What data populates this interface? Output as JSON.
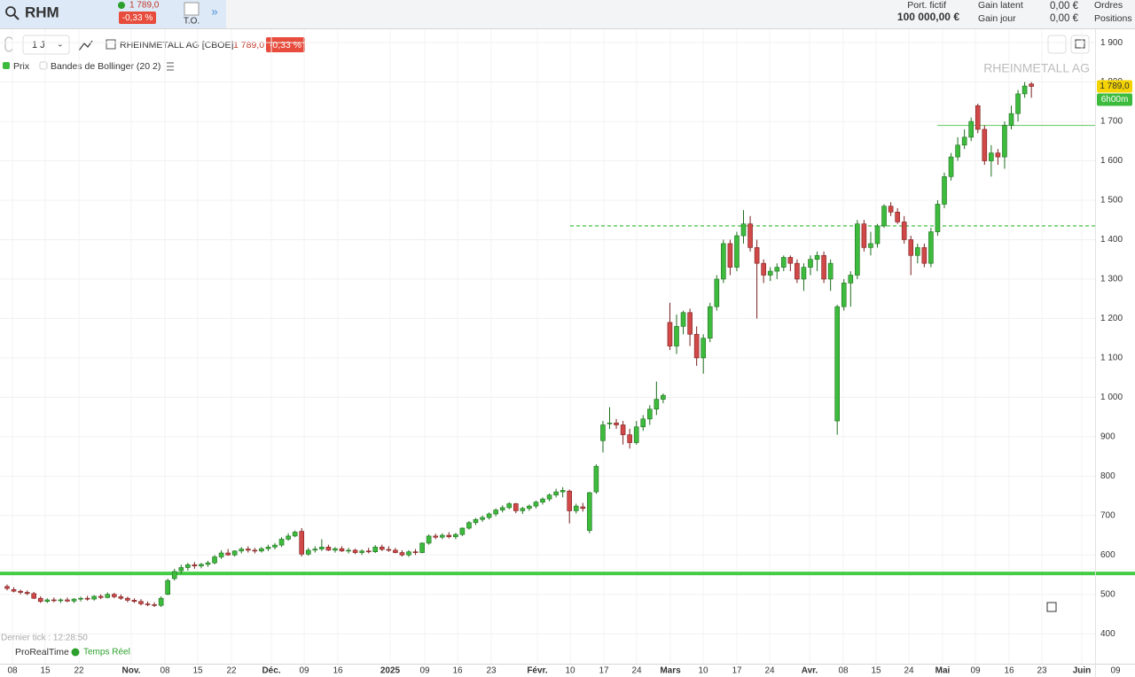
{
  "top_bar": {
    "symbol": "RHM",
    "price": "1 789,0",
    "change": "-0,33 %",
    "to": "T.O.",
    "portfolio_label": "Port. fictif",
    "portfolio_value": "100 000,00 €",
    "gain_latent_label": "Gain latent",
    "gain_latent": "0,00 €",
    "gain_jour_label": "Gain jour",
    "gain_jour": "0,00 €",
    "orders": "Ordres",
    "positions": "Positions"
  },
  "toolbar": {
    "interval": "1 J",
    "instrument": "RHEINMETALL AG [CBOE]",
    "price": "1 789,0",
    "change": "-0,33 %"
  },
  "legend": {
    "price": "Prix",
    "indicator": "Bandes de Bollinger (20 2)"
  },
  "footer": {
    "last_tick": "Dernier tick : 12:28:50",
    "brand": "ProRealTime",
    "feed": "Temps Réel"
  },
  "chart_data": {
    "type": "candlestick",
    "watermark": "RHEINMETALL AG",
    "up_color": "#3dbb3d",
    "down_color": "#d04848",
    "x_labels": [
      "08",
      "15",
      "22",
      "Nov.",
      "08",
      "15",
      "22",
      "Déc.",
      "09",
      "16",
      "2025",
      "09",
      "16",
      "23",
      "Févr.",
      "10",
      "17",
      "24",
      "Mars",
      "10",
      "17",
      "24",
      "Avr.",
      "08",
      "15",
      "24",
      "Mai",
      "09",
      "16",
      "23",
      "Juin",
      "09"
    ],
    "ylim": [
      324,
      1934
    ],
    "yticks": [
      400,
      500,
      600,
      700,
      800,
      900,
      {
        "value": 1000,
        "label": "1 000"
      },
      {
        "value": 1100,
        "label": "1 100"
      },
      {
        "value": 1200,
        "label": "1 200"
      },
      {
        "value": 1300,
        "label": "1 300"
      },
      {
        "value": 1400,
        "label": "1 400"
      },
      {
        "value": 1500,
        "label": "1 500"
      },
      {
        "value": 1600,
        "label": "1 600"
      },
      {
        "value": 1700,
        "label": "1 700"
      },
      {
        "value": 1800,
        "label": "1 800"
      },
      {
        "value": 1900,
        "label": "1 900"
      }
    ],
    "grid": true,
    "levels": [
      {
        "value": 553,
        "color": "#44cc44",
        "style": "solid",
        "width": 4
      },
      {
        "value": 1435,
        "color": "#2db82d",
        "style": "dashed",
        "width": 1.2
      },
      {
        "value": 1690,
        "color": "#7fd07f",
        "style": "solid",
        "width": 1.2
      }
    ],
    "last_price_label": "1 789,0",
    "countdown": "6h00m",
    "candles": [
      {
        "open": 520,
        "high": 525,
        "low": 510,
        "close": 515
      },
      {
        "open": 512,
        "high": 518,
        "low": 505,
        "close": 508
      },
      {
        "open": 508,
        "high": 512,
        "low": 500,
        "close": 505
      },
      {
        "open": 505,
        "high": 510,
        "low": 498,
        "close": 502
      },
      {
        "open": 502,
        "high": 506,
        "low": 488,
        "close": 490
      },
      {
        "open": 490,
        "high": 495,
        "low": 478,
        "close": 482
      },
      {
        "open": 482,
        "high": 490,
        "low": 478,
        "close": 486
      },
      {
        "open": 486,
        "high": 492,
        "low": 480,
        "close": 484
      },
      {
        "open": 484,
        "high": 490,
        "low": 478,
        "close": 486
      },
      {
        "open": 486,
        "high": 492,
        "low": 480,
        "close": 483
      },
      {
        "open": 483,
        "high": 490,
        "low": 478,
        "close": 488
      },
      {
        "open": 488,
        "high": 494,
        "low": 482,
        "close": 490
      },
      {
        "open": 490,
        "high": 496,
        "low": 484,
        "close": 488
      },
      {
        "open": 488,
        "high": 498,
        "low": 484,
        "close": 495
      },
      {
        "open": 495,
        "high": 500,
        "low": 488,
        "close": 492
      },
      {
        "open": 492,
        "high": 505,
        "low": 490,
        "close": 500
      },
      {
        "open": 500,
        "high": 504,
        "low": 490,
        "close": 494
      },
      {
        "open": 494,
        "high": 500,
        "low": 486,
        "close": 490
      },
      {
        "open": 490,
        "high": 494,
        "low": 480,
        "close": 485
      },
      {
        "open": 485,
        "high": 490,
        "low": 478,
        "close": 482
      },
      {
        "open": 482,
        "high": 488,
        "low": 472,
        "close": 476
      },
      {
        "open": 476,
        "high": 482,
        "low": 470,
        "close": 474
      },
      {
        "open": 474,
        "high": 480,
        "low": 468,
        "close": 472
      },
      {
        "open": 472,
        "high": 495,
        "low": 468,
        "close": 490
      },
      {
        "open": 500,
        "high": 540,
        "low": 498,
        "close": 535
      },
      {
        "open": 540,
        "high": 565,
        "low": 535,
        "close": 558
      },
      {
        "open": 560,
        "high": 575,
        "low": 552,
        "close": 568
      },
      {
        "open": 568,
        "high": 580,
        "low": 560,
        "close": 575
      },
      {
        "open": 575,
        "high": 582,
        "low": 565,
        "close": 572
      },
      {
        "open": 572,
        "high": 580,
        "low": 566,
        "close": 576
      },
      {
        "open": 576,
        "high": 585,
        "low": 570,
        "close": 580
      },
      {
        "open": 580,
        "high": 600,
        "low": 576,
        "close": 595
      },
      {
        "open": 595,
        "high": 612,
        "low": 590,
        "close": 605
      },
      {
        "open": 605,
        "high": 615,
        "low": 598,
        "close": 600
      },
      {
        "open": 600,
        "high": 612,
        "low": 596,
        "close": 610
      },
      {
        "open": 610,
        "high": 620,
        "low": 604,
        "close": 615
      },
      {
        "open": 615,
        "high": 622,
        "low": 606,
        "close": 612
      },
      {
        "open": 612,
        "high": 618,
        "low": 604,
        "close": 610
      },
      {
        "open": 610,
        "high": 620,
        "low": 606,
        "close": 616
      },
      {
        "open": 616,
        "high": 626,
        "low": 610,
        "close": 620
      },
      {
        "open": 620,
        "high": 630,
        "low": 614,
        "close": 625
      },
      {
        "open": 625,
        "high": 645,
        "low": 620,
        "close": 640
      },
      {
        "open": 640,
        "high": 655,
        "low": 636,
        "close": 648
      },
      {
        "open": 648,
        "high": 662,
        "low": 645,
        "close": 658
      },
      {
        "open": 660,
        "high": 668,
        "low": 596,
        "close": 602
      },
      {
        "open": 602,
        "high": 618,
        "low": 598,
        "close": 612
      },
      {
        "open": 612,
        "high": 622,
        "low": 606,
        "close": 615
      },
      {
        "open": 615,
        "high": 640,
        "low": 610,
        "close": 620
      },
      {
        "open": 620,
        "high": 626,
        "low": 610,
        "close": 612
      },
      {
        "open": 612,
        "high": 620,
        "low": 606,
        "close": 616
      },
      {
        "open": 616,
        "high": 622,
        "low": 608,
        "close": 610
      },
      {
        "open": 610,
        "high": 618,
        "low": 604,
        "close": 612
      },
      {
        "open": 612,
        "high": 616,
        "low": 602,
        "close": 606
      },
      {
        "open": 606,
        "high": 614,
        "low": 600,
        "close": 610
      },
      {
        "open": 610,
        "high": 618,
        "low": 604,
        "close": 608
      },
      {
        "open": 608,
        "high": 625,
        "low": 605,
        "close": 620
      },
      {
        "open": 620,
        "high": 626,
        "low": 610,
        "close": 614
      },
      {
        "open": 614,
        "high": 622,
        "low": 608,
        "close": 612
      },
      {
        "open": 612,
        "high": 618,
        "low": 604,
        "close": 606
      },
      {
        "open": 606,
        "high": 612,
        "low": 596,
        "close": 600
      },
      {
        "open": 600,
        "high": 612,
        "low": 595,
        "close": 608
      },
      {
        "open": 608,
        "high": 615,
        "low": 600,
        "close": 606
      },
      {
        "open": 606,
        "high": 632,
        "low": 604,
        "close": 630
      },
      {
        "open": 630,
        "high": 652,
        "low": 626,
        "close": 648
      },
      {
        "open": 648,
        "high": 654,
        "low": 640,
        "close": 645
      },
      {
        "open": 645,
        "high": 655,
        "low": 640,
        "close": 650
      },
      {
        "open": 650,
        "high": 658,
        "low": 642,
        "close": 646
      },
      {
        "open": 646,
        "high": 656,
        "low": 640,
        "close": 652
      },
      {
        "open": 652,
        "high": 670,
        "low": 648,
        "close": 668
      },
      {
        "open": 668,
        "high": 686,
        "low": 664,
        "close": 682
      },
      {
        "open": 682,
        "high": 694,
        "low": 676,
        "close": 690
      },
      {
        "open": 690,
        "high": 700,
        "low": 684,
        "close": 695
      },
      {
        "open": 695,
        "high": 708,
        "low": 690,
        "close": 704
      },
      {
        "open": 704,
        "high": 718,
        "low": 698,
        "close": 714
      },
      {
        "open": 714,
        "high": 726,
        "low": 708,
        "close": 720
      },
      {
        "open": 720,
        "high": 734,
        "low": 716,
        "close": 730
      },
      {
        "open": 730,
        "high": 732,
        "low": 706,
        "close": 712
      },
      {
        "open": 712,
        "high": 722,
        "low": 704,
        "close": 718
      },
      {
        "open": 718,
        "high": 728,
        "low": 712,
        "close": 724
      },
      {
        "open": 724,
        "high": 738,
        "low": 718,
        "close": 734
      },
      {
        "open": 734,
        "high": 746,
        "low": 728,
        "close": 742
      },
      {
        "open": 742,
        "high": 756,
        "low": 736,
        "close": 752
      },
      {
        "open": 752,
        "high": 768,
        "low": 746,
        "close": 760
      },
      {
        "open": 760,
        "high": 772,
        "low": 746,
        "close": 764
      },
      {
        "open": 762,
        "high": 766,
        "low": 680,
        "close": 712
      },
      {
        "open": 712,
        "high": 730,
        "low": 705,
        "close": 724
      },
      {
        "open": 722,
        "high": 732,
        "low": 710,
        "close": 718
      },
      {
        "open": 662,
        "high": 760,
        "low": 655,
        "close": 758
      },
      {
        "open": 760,
        "high": 830,
        "low": 755,
        "close": 825
      },
      {
        "open": 890,
        "high": 940,
        "low": 860,
        "close": 930
      },
      {
        "open": 935,
        "high": 975,
        "low": 920,
        "close": 935
      },
      {
        "open": 935,
        "high": 945,
        "low": 920,
        "close": 930
      },
      {
        "open": 930,
        "high": 940,
        "low": 880,
        "close": 905
      },
      {
        "open": 905,
        "high": 920,
        "low": 870,
        "close": 885
      },
      {
        "open": 885,
        "high": 940,
        "low": 880,
        "close": 925
      },
      {
        "open": 925,
        "high": 955,
        "low": 915,
        "close": 945
      },
      {
        "open": 945,
        "high": 980,
        "low": 930,
        "close": 970
      },
      {
        "open": 970,
        "high": 1040,
        "low": 955,
        "close": 995
      },
      {
        "open": 995,
        "high": 1010,
        "low": 985,
        "close": 1005
      },
      {
        "open": 1190,
        "high": 1240,
        "low": 1120,
        "close": 1130
      },
      {
        "open": 1130,
        "high": 1210,
        "low": 1110,
        "close": 1180
      },
      {
        "open": 1180,
        "high": 1220,
        "low": 1160,
        "close": 1215
      },
      {
        "open": 1215,
        "high": 1225,
        "low": 1130,
        "close": 1160
      },
      {
        "open": 1160,
        "high": 1180,
        "low": 1080,
        "close": 1100
      },
      {
        "open": 1100,
        "high": 1160,
        "low": 1060,
        "close": 1150
      },
      {
        "open": 1150,
        "high": 1240,
        "low": 1140,
        "close": 1230
      },
      {
        "open": 1230,
        "high": 1310,
        "low": 1220,
        "close": 1300
      },
      {
        "open": 1300,
        "high": 1400,
        "low": 1290,
        "close": 1390
      },
      {
        "open": 1390,
        "high": 1400,
        "low": 1310,
        "close": 1330
      },
      {
        "open": 1330,
        "high": 1420,
        "low": 1320,
        "close": 1410
      },
      {
        "open": 1410,
        "high": 1475,
        "low": 1390,
        "close": 1440
      },
      {
        "open": 1440,
        "high": 1460,
        "low": 1370,
        "close": 1380
      },
      {
        "open": 1380,
        "high": 1400,
        "low": 1200,
        "close": 1340
      },
      {
        "open": 1340,
        "high": 1350,
        "low": 1290,
        "close": 1310
      },
      {
        "open": 1310,
        "high": 1330,
        "low": 1295,
        "close": 1320
      },
      {
        "open": 1320,
        "high": 1340,
        "low": 1300,
        "close": 1330
      },
      {
        "open": 1330,
        "high": 1360,
        "low": 1320,
        "close": 1355
      },
      {
        "open": 1355,
        "high": 1360,
        "low": 1320,
        "close": 1340
      },
      {
        "open": 1340,
        "high": 1350,
        "low": 1290,
        "close": 1300
      },
      {
        "open": 1300,
        "high": 1340,
        "low": 1270,
        "close": 1330
      },
      {
        "open": 1330,
        "high": 1360,
        "low": 1310,
        "close": 1350
      },
      {
        "open": 1350,
        "high": 1370,
        "low": 1320,
        "close": 1360
      },
      {
        "open": 1360,
        "high": 1370,
        "low": 1290,
        "close": 1300
      },
      {
        "open": 1300,
        "high": 1350,
        "low": 1270,
        "close": 1340
      },
      {
        "open": 940,
        "high": 1235,
        "low": 905,
        "close": 1230
      },
      {
        "open": 1230,
        "high": 1300,
        "low": 1220,
        "close": 1290
      },
      {
        "open": 1290,
        "high": 1320,
        "low": 1230,
        "close": 1310
      },
      {
        "open": 1310,
        "high": 1450,
        "low": 1300,
        "close": 1440
      },
      {
        "open": 1440,
        "high": 1450,
        "low": 1370,
        "close": 1380
      },
      {
        "open": 1380,
        "high": 1420,
        "low": 1360,
        "close": 1390
      },
      {
        "open": 1390,
        "high": 1440,
        "low": 1380,
        "close": 1435
      },
      {
        "open": 1435,
        "high": 1490,
        "low": 1430,
        "close": 1485
      },
      {
        "open": 1485,
        "high": 1495,
        "low": 1460,
        "close": 1470
      },
      {
        "open": 1470,
        "high": 1480,
        "low": 1440,
        "close": 1445
      },
      {
        "open": 1445,
        "high": 1460,
        "low": 1390,
        "close": 1400
      },
      {
        "open": 1400,
        "high": 1410,
        "low": 1310,
        "close": 1360
      },
      {
        "open": 1360,
        "high": 1390,
        "low": 1340,
        "close": 1380
      },
      {
        "open": 1380,
        "high": 1390,
        "low": 1330,
        "close": 1340
      },
      {
        "open": 1340,
        "high": 1430,
        "low": 1330,
        "close": 1420
      },
      {
        "open": 1420,
        "high": 1500,
        "low": 1410,
        "close": 1490
      },
      {
        "open": 1490,
        "high": 1570,
        "low": 1480,
        "close": 1560
      },
      {
        "open": 1560,
        "high": 1620,
        "low": 1550,
        "close": 1610
      },
      {
        "open": 1610,
        "high": 1660,
        "low": 1600,
        "close": 1640
      },
      {
        "open": 1640,
        "high": 1680,
        "low": 1630,
        "close": 1660
      },
      {
        "open": 1660,
        "high": 1710,
        "low": 1650,
        "close": 1700
      },
      {
        "open": 1740,
        "high": 1745,
        "low": 1670,
        "close": 1680
      },
      {
        "open": 1680,
        "high": 1690,
        "low": 1590,
        "close": 1600
      },
      {
        "open": 1600,
        "high": 1640,
        "low": 1560,
        "close": 1620
      },
      {
        "open": 1620,
        "high": 1630,
        "low": 1590,
        "close": 1610
      },
      {
        "open": 1610,
        "high": 1700,
        "low": 1580,
        "close": 1690
      },
      {
        "open": 1690,
        "high": 1740,
        "low": 1680,
        "close": 1720
      },
      {
        "open": 1720,
        "high": 1780,
        "low": 1700,
        "close": 1770
      },
      {
        "open": 1770,
        "high": 1800,
        "low": 1760,
        "close": 1790
      },
      {
        "open": 1795,
        "high": 1800,
        "low": 1760,
        "close": 1789
      }
    ]
  }
}
